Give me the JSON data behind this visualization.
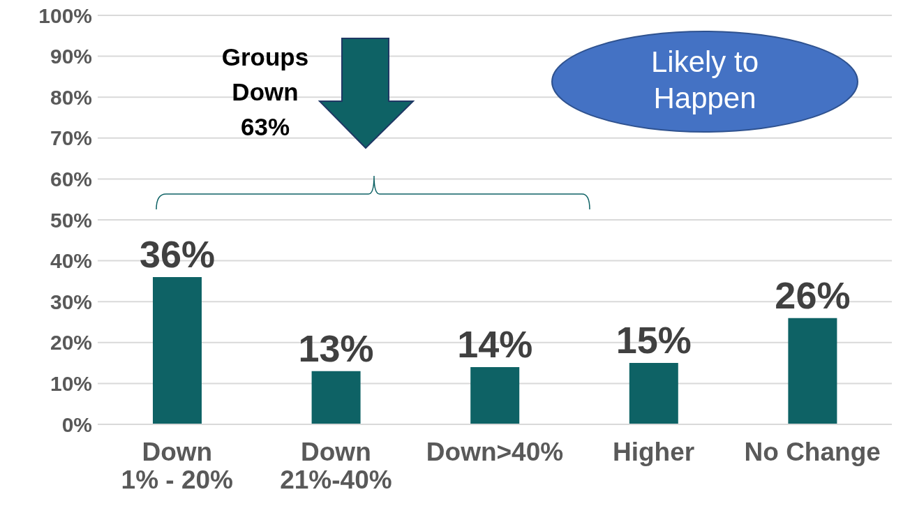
{
  "chart_data": {
    "type": "bar",
    "categories": [
      "Down\n1% - 20%",
      "Down\n21%-40%",
      "Down>40%",
      "Higher",
      "No Change"
    ],
    "values": [
      36,
      13,
      14,
      15,
      26
    ],
    "color": "#0e6265",
    "value_labels": [
      "36%",
      "13%",
      "14%",
      "15%",
      "26%"
    ],
    "ylim": [
      0,
      100
    ],
    "yticks": [
      {
        "value": 0,
        "label": "0%"
      },
      {
        "value": 10,
        "label": "10%"
      },
      {
        "value": 20,
        "label": "20%"
      },
      {
        "value": 30,
        "label": "30%"
      },
      {
        "value": 40,
        "label": "40%"
      },
      {
        "value": 50,
        "label": "50%"
      },
      {
        "value": 60,
        "label": "60%"
      },
      {
        "value": 70,
        "label": "70%"
      },
      {
        "value": 80,
        "label": "80%"
      },
      {
        "value": 90,
        "label": "90%"
      },
      {
        "value": 100,
        "label": "100%"
      }
    ],
    "grid": "y",
    "legend": false,
    "annotations": [
      "Groups\nDown\n63%",
      "Likely to\nHappen"
    ]
  }
}
